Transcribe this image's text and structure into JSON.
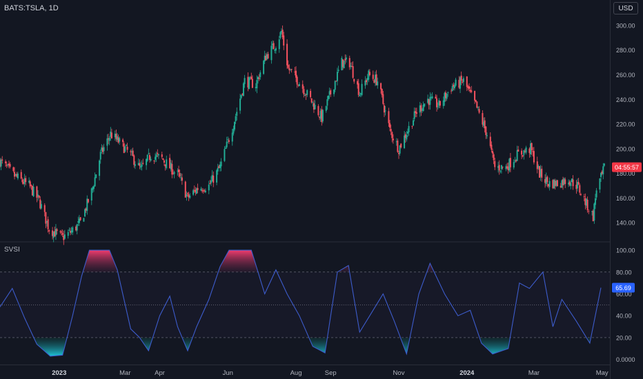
{
  "header": {
    "symbol": "BATS:TSLA, 1D",
    "currency": "USD"
  },
  "price_badge": {
    "label": "04:55:57",
    "color": "#f23645"
  },
  "indicator": {
    "name": "SVSI",
    "value_badge": "65.69",
    "badge_color": "#2962ff"
  },
  "colors": {
    "up": "#26a69a",
    "down": "#ef5350",
    "up_c": "#22ab94",
    "down_c": "#f7525f",
    "line": "#3d5ccc",
    "grid": "#2a2e39",
    "ob": "#f23c6e",
    "os": "#1ec8dc"
  },
  "chart_data": [
    {
      "type": "candlestick",
      "title": "BATS:TSLA, 1D",
      "ylim": [
        125,
        305
      ],
      "y_ticks": [
        "140.00",
        "160.00",
        "180.00",
        "200.00",
        "220.00",
        "240.00",
        "260.00",
        "280.00",
        "300.00"
      ],
      "x_ticks": [
        {
          "label": "2023",
          "date": "2023-01-01",
          "bold": true
        },
        {
          "label": "Mar",
          "date": "2023-03-01"
        },
        {
          "label": "Apr",
          "date": "2023-04-01"
        },
        {
          "label": "Jun",
          "date": "2023-06-01"
        },
        {
          "label": "Aug",
          "date": "2023-08-01"
        },
        {
          "label": "Sep",
          "date": "2023-09-01"
        },
        {
          "label": "Nov",
          "date": "2023-11-01"
        },
        {
          "label": "2024",
          "date": "2024-01-01",
          "bold": true
        },
        {
          "label": "Mar",
          "date": "2024-03-01"
        },
        {
          "label": "May",
          "date": "2024-05-01"
        }
      ],
      "x_range": [
        "2022-11-09",
        "2024-05-08"
      ],
      "close_path": [
        [
          "2022-11-09",
          190
        ],
        [
          "2022-11-22",
          178
        ],
        [
          "2022-12-05",
          170
        ],
        [
          "2022-12-14",
          158
        ],
        [
          "2022-12-23",
          135
        ],
        [
          "2023-01-04",
          128
        ],
        [
          "2023-01-12",
          133
        ],
        [
          "2023-01-20",
          140
        ],
        [
          "2023-01-30",
          165
        ],
        [
          "2023-02-07",
          195
        ],
        [
          "2023-02-16",
          212
        ],
        [
          "2023-02-24",
          205
        ],
        [
          "2023-03-06",
          195
        ],
        [
          "2023-03-15",
          183
        ],
        [
          "2023-03-24",
          195
        ],
        [
          "2023-04-03",
          192
        ],
        [
          "2023-04-10",
          185
        ],
        [
          "2023-04-18",
          178
        ],
        [
          "2023-04-26",
          160
        ],
        [
          "2023-05-05",
          168
        ],
        [
          "2023-05-15",
          170
        ],
        [
          "2023-05-25",
          185
        ],
        [
          "2023-06-06",
          220
        ],
        [
          "2023-06-16",
          255
        ],
        [
          "2023-06-26",
          252
        ],
        [
          "2023-07-05",
          275
        ],
        [
          "2023-07-14",
          285
        ],
        [
          "2023-07-19",
          295
        ],
        [
          "2023-07-25",
          265
        ],
        [
          "2023-08-03",
          255
        ],
        [
          "2023-08-14",
          240
        ],
        [
          "2023-08-24",
          225
        ],
        [
          "2023-09-01",
          245
        ],
        [
          "2023-09-11",
          270
        ],
        [
          "2023-09-18",
          270
        ],
        [
          "2023-09-27",
          245
        ],
        [
          "2023-10-05",
          260
        ],
        [
          "2023-10-13",
          255
        ],
        [
          "2023-10-24",
          215
        ],
        [
          "2023-11-01",
          200
        ],
        [
          "2023-11-09",
          215
        ],
        [
          "2023-11-17",
          230
        ],
        [
          "2023-11-27",
          240
        ],
        [
          "2023-12-07",
          235
        ],
        [
          "2023-12-18",
          250
        ],
        [
          "2023-12-29",
          255
        ],
        [
          "2024-01-09",
          235
        ],
        [
          "2024-01-19",
          212
        ],
        [
          "2024-01-26",
          185
        ],
        [
          "2024-02-05",
          185
        ],
        [
          "2024-02-15",
          195
        ],
        [
          "2024-02-27",
          200
        ],
        [
          "2024-03-06",
          180
        ],
        [
          "2024-03-14",
          172
        ],
        [
          "2024-03-22",
          172
        ],
        [
          "2024-04-01",
          175
        ],
        [
          "2024-04-09",
          170
        ],
        [
          "2024-04-17",
          155
        ],
        [
          "2024-04-23",
          145
        ],
        [
          "2024-04-26",
          168
        ],
        [
          "2024-05-01",
          178
        ],
        [
          "2024-05-03",
          185
        ]
      ],
      "last_price_badge": "04:55:57"
    },
    {
      "type": "line",
      "title": "SVSI",
      "ylim": [
        -4,
        107
      ],
      "y_ticks": [
        "0.0000",
        "20.00",
        "40.00",
        "60.00",
        "80.00",
        "100.00"
      ],
      "levels": [
        20,
        50,
        80
      ],
      "last_value_badge": "65.69",
      "series": [
        {
          "values": [
            [
              "2022-11-09",
              48
            ],
            [
              "2022-11-20",
              65
            ],
            [
              "2022-12-01",
              38
            ],
            [
              "2022-12-12",
              14
            ],
            [
              "2022-12-24",
              3
            ],
            [
              "2023-01-04",
              4
            ],
            [
              "2023-01-13",
              40
            ],
            [
              "2023-01-21",
              76
            ],
            [
              "2023-01-28",
              100
            ],
            [
              "2023-02-15",
              100
            ],
            [
              "2023-02-22",
              82
            ],
            [
              "2023-03-06",
              28
            ],
            [
              "2023-03-14",
              20
            ],
            [
              "2023-03-22",
              8
            ],
            [
              "2023-04-01",
              40
            ],
            [
              "2023-04-10",
              58
            ],
            [
              "2023-04-17",
              30
            ],
            [
              "2023-04-26",
              8
            ],
            [
              "2023-05-04",
              30
            ],
            [
              "2023-05-15",
              55
            ],
            [
              "2023-05-25",
              85
            ],
            [
              "2023-06-02",
              100
            ],
            [
              "2023-06-22",
              100
            ],
            [
              "2023-07-04",
              60
            ],
            [
              "2023-07-14",
              82
            ],
            [
              "2023-07-24",
              60
            ],
            [
              "2023-08-04",
              40
            ],
            [
              "2023-08-16",
              12
            ],
            [
              "2023-08-27",
              6
            ],
            [
              "2023-09-07",
              80
            ],
            [
              "2023-09-17",
              86
            ],
            [
              "2023-09-27",
              25
            ],
            [
              "2023-10-06",
              40
            ],
            [
              "2023-10-18",
              60
            ],
            [
              "2023-10-28",
              35
            ],
            [
              "2023-11-08",
              5
            ],
            [
              "2023-11-19",
              60
            ],
            [
              "2023-11-29",
              88
            ],
            [
              "2023-12-12",
              60
            ],
            [
              "2023-12-24",
              40
            ],
            [
              "2024-01-04",
              45
            ],
            [
              "2024-01-14",
              15
            ],
            [
              "2024-01-24",
              5
            ],
            [
              "2024-02-07",
              10
            ],
            [
              "2024-02-17",
              70
            ],
            [
              "2024-02-26",
              65
            ],
            [
              "2024-03-09",
              80
            ],
            [
              "2024-03-18",
              30
            ],
            [
              "2024-03-26",
              55
            ],
            [
              "2024-04-08",
              35
            ],
            [
              "2024-04-20",
              15
            ],
            [
              "2024-04-30",
              65.69
            ]
          ]
        }
      ]
    }
  ]
}
